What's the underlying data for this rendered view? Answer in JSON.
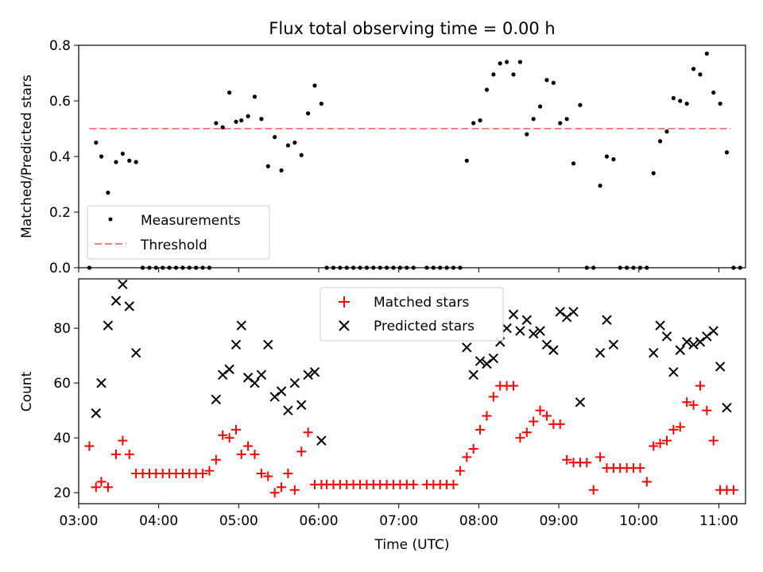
{
  "title": "Flux total observing time = 0.00 h",
  "chart_data": [
    {
      "type": "scatter",
      "ylabel": "Matched/Predicted stars",
      "xlim": [
        "03:00",
        "11:20"
      ],
      "ylim": [
        0,
        0.8
      ],
      "yticks": [
        "0.0",
        "0.2",
        "0.4",
        "0.6",
        "0.8"
      ],
      "legend": {
        "placement": "lower-left",
        "entries": [
          "Measurements",
          "Threshold"
        ]
      },
      "threshold": {
        "name": "Threshold",
        "y": 0.5,
        "x_range": [
          "03:08",
          "11:09"
        ],
        "color": "#ff8080",
        "style": "dashed"
      },
      "series": [
        {
          "name": "Measurements",
          "marker": "dot",
          "color": "#000000",
          "points": [
            [
              "03:08",
              0.0
            ],
            [
              "03:13",
              0.45
            ],
            [
              "03:17",
              0.4
            ],
            [
              "03:22",
              0.27
            ],
            [
              "03:28",
              0.38
            ],
            [
              "03:33",
              0.41
            ],
            [
              "03:38",
              0.385
            ],
            [
              "03:43",
              0.38
            ],
            [
              "03:48",
              0.0
            ],
            [
              "03:53",
              0.0
            ],
            [
              "03:58",
              0.0
            ],
            [
              "04:03",
              0.0
            ],
            [
              "04:08",
              0.0
            ],
            [
              "04:13",
              0.0
            ],
            [
              "04:18",
              0.0
            ],
            [
              "04:23",
              0.0
            ],
            [
              "04:28",
              0.0
            ],
            [
              "04:33",
              0.0
            ],
            [
              "04:38",
              0.0
            ],
            [
              "04:43",
              0.52
            ],
            [
              "04:48",
              0.505
            ],
            [
              "04:53",
              0.63
            ],
            [
              "04:58",
              0.525
            ],
            [
              "05:02",
              0.53
            ],
            [
              "05:07",
              0.545
            ],
            [
              "05:12",
              0.615
            ],
            [
              "05:17",
              0.535
            ],
            [
              "05:22",
              0.365
            ],
            [
              "05:27",
              0.47
            ],
            [
              "05:32",
              0.35
            ],
            [
              "05:37",
              0.44
            ],
            [
              "05:42",
              0.45
            ],
            [
              "05:47",
              0.405
            ],
            [
              "05:52",
              0.555
            ],
            [
              "05:57",
              0.655
            ],
            [
              "06:02",
              0.59
            ],
            [
              "06:06",
              0.0
            ],
            [
              "06:11",
              0.0
            ],
            [
              "06:16",
              0.0
            ],
            [
              "06:21",
              0.0
            ],
            [
              "06:26",
              0.0
            ],
            [
              "06:31",
              0.0
            ],
            [
              "06:36",
              0.0
            ],
            [
              "06:41",
              0.0
            ],
            [
              "06:46",
              0.0
            ],
            [
              "06:51",
              0.0
            ],
            [
              "06:56",
              0.0
            ],
            [
              "07:01",
              0.0
            ],
            [
              "07:06",
              0.0
            ],
            [
              "07:11",
              0.0
            ],
            [
              "07:21",
              0.0
            ],
            [
              "07:26",
              0.0
            ],
            [
              "07:31",
              0.0
            ],
            [
              "07:36",
              0.0
            ],
            [
              "07:41",
              0.0
            ],
            [
              "07:46",
              0.0
            ],
            [
              "07:51",
              0.385
            ],
            [
              "07:56",
              0.52
            ],
            [
              "08:01",
              0.53
            ],
            [
              "08:06",
              0.64
            ],
            [
              "08:11",
              0.695
            ],
            [
              "08:16",
              0.735
            ],
            [
              "08:21",
              0.74
            ],
            [
              "08:26",
              0.695
            ],
            [
              "08:31",
              0.74
            ],
            [
              "08:36",
              0.48
            ],
            [
              "08:41",
              0.535
            ],
            [
              "08:46",
              0.58
            ],
            [
              "08:51",
              0.675
            ],
            [
              "08:56",
              0.665
            ],
            [
              "09:01",
              0.52
            ],
            [
              "09:06",
              0.535
            ],
            [
              "09:11",
              0.375
            ],
            [
              "09:16",
              0.585
            ],
            [
              "09:21",
              0.0
            ],
            [
              "09:26",
              0.0
            ],
            [
              "09:31",
              0.295
            ],
            [
              "09:36",
              0.4
            ],
            [
              "09:41",
              0.39
            ],
            [
              "09:46",
              0.0
            ],
            [
              "09:51",
              0.0
            ],
            [
              "09:56",
              0.0
            ],
            [
              "10:01",
              0.0
            ],
            [
              "10:06",
              0.0
            ],
            [
              "10:11",
              0.34
            ],
            [
              "10:16",
              0.455
            ],
            [
              "10:21",
              0.49
            ],
            [
              "10:26",
              0.61
            ],
            [
              "10:31",
              0.6
            ],
            [
              "10:36",
              0.59
            ],
            [
              "10:41",
              0.715
            ],
            [
              "10:46",
              0.695
            ],
            [
              "10:51",
              0.77
            ],
            [
              "10:56",
              0.63
            ],
            [
              "11:01",
              0.59
            ],
            [
              "11:06",
              0.415
            ],
            [
              "11:11",
              0.0
            ],
            [
              "11:16",
              0.0
            ]
          ]
        }
      ]
    },
    {
      "type": "scatter",
      "xlabel": "Time (UTC)",
      "ylabel": "Count",
      "xlim": [
        "03:00",
        "11:20"
      ],
      "ylim": [
        16,
        98
      ],
      "yticks": [
        "20",
        "40",
        "60",
        "80"
      ],
      "xticks": [
        "03:00",
        "04:00",
        "05:00",
        "06:00",
        "07:00",
        "08:00",
        "09:00",
        "10:00",
        "11:00"
      ],
      "legend": {
        "placement": "upper-center",
        "entries": [
          "Matched stars",
          "Predicted stars"
        ]
      },
      "series": [
        {
          "name": "Matched stars",
          "marker": "plus",
          "color": "#ff0000",
          "points": [
            [
              "03:08",
              37
            ],
            [
              "03:13",
              22
            ],
            [
              "03:17",
              24
            ],
            [
              "03:22",
              22
            ],
            [
              "03:28",
              34
            ],
            [
              "03:33",
              39
            ],
            [
              "03:38",
              34
            ],
            [
              "03:43",
              27
            ],
            [
              "03:48",
              27
            ],
            [
              "03:53",
              27
            ],
            [
              "03:58",
              27
            ],
            [
              "04:03",
              27
            ],
            [
              "04:08",
              27
            ],
            [
              "04:13",
              27
            ],
            [
              "04:18",
              27
            ],
            [
              "04:23",
              27
            ],
            [
              "04:28",
              27
            ],
            [
              "04:33",
              27
            ],
            [
              "04:38",
              28
            ],
            [
              "04:43",
              32
            ],
            [
              "04:48",
              41
            ],
            [
              "04:53",
              40
            ],
            [
              "04:58",
              43
            ],
            [
              "05:02",
              34
            ],
            [
              "05:07",
              37
            ],
            [
              "05:12",
              34
            ],
            [
              "05:17",
              27
            ],
            [
              "05:22",
              26
            ],
            [
              "05:27",
              20
            ],
            [
              "05:32",
              22
            ],
            [
              "05:37",
              27
            ],
            [
              "05:42",
              21
            ],
            [
              "05:47",
              35
            ],
            [
              "05:52",
              42
            ],
            [
              "05:57",
              23
            ],
            [
              "06:02",
              23
            ],
            [
              "06:06",
              23
            ],
            [
              "06:11",
              23
            ],
            [
              "06:16",
              23
            ],
            [
              "06:21",
              23
            ],
            [
              "06:26",
              23
            ],
            [
              "06:31",
              23
            ],
            [
              "06:36",
              23
            ],
            [
              "06:41",
              23
            ],
            [
              "06:46",
              23
            ],
            [
              "06:51",
              23
            ],
            [
              "06:56",
              23
            ],
            [
              "07:01",
              23
            ],
            [
              "07:06",
              23
            ],
            [
              "07:11",
              23
            ],
            [
              "07:21",
              23
            ],
            [
              "07:26",
              23
            ],
            [
              "07:31",
              23
            ],
            [
              "07:36",
              23
            ],
            [
              "07:41",
              23
            ],
            [
              "07:46",
              28
            ],
            [
              "07:51",
              33
            ],
            [
              "07:56",
              36
            ],
            [
              "08:01",
              43
            ],
            [
              "08:06",
              48
            ],
            [
              "08:11",
              55
            ],
            [
              "08:16",
              59
            ],
            [
              "08:21",
              59
            ],
            [
              "08:26",
              59
            ],
            [
              "08:31",
              40
            ],
            [
              "08:36",
              42
            ],
            [
              "08:41",
              46
            ],
            [
              "08:46",
              50
            ],
            [
              "08:51",
              48
            ],
            [
              "08:56",
              45
            ],
            [
              "09:01",
              45
            ],
            [
              "09:06",
              32
            ],
            [
              "09:11",
              31
            ],
            [
              "09:16",
              31
            ],
            [
              "09:21",
              31
            ],
            [
              "09:26",
              21
            ],
            [
              "09:31",
              33
            ],
            [
              "09:36",
              29
            ],
            [
              "09:41",
              29
            ],
            [
              "09:46",
              29
            ],
            [
              "09:51",
              29
            ],
            [
              "09:56",
              29
            ],
            [
              "10:01",
              29
            ],
            [
              "10:06",
              24
            ],
            [
              "10:11",
              37
            ],
            [
              "10:16",
              38
            ],
            [
              "10:21",
              39
            ],
            [
              "10:26",
              43
            ],
            [
              "10:31",
              44
            ],
            [
              "10:36",
              53
            ],
            [
              "10:41",
              52
            ],
            [
              "10:46",
              59
            ],
            [
              "10:51",
              50
            ],
            [
              "10:56",
              39
            ],
            [
              "11:01",
              21
            ],
            [
              "11:06",
              21
            ],
            [
              "11:11",
              21
            ]
          ]
        },
        {
          "name": "Predicted stars",
          "marker": "x",
          "color": "#000000",
          "points": [
            [
              "03:13",
              49
            ],
            [
              "03:17",
              60
            ],
            [
              "03:22",
              81
            ],
            [
              "03:28",
              90
            ],
            [
              "03:33",
              96
            ],
            [
              "03:38",
              88
            ],
            [
              "03:43",
              71
            ],
            [
              "04:43",
              54
            ],
            [
              "04:48",
              63
            ],
            [
              "04:53",
              65
            ],
            [
              "04:58",
              74
            ],
            [
              "05:02",
              81
            ],
            [
              "05:07",
              62
            ],
            [
              "05:12",
              60
            ],
            [
              "05:17",
              63
            ],
            [
              "05:22",
              74
            ],
            [
              "05:27",
              55
            ],
            [
              "05:32",
              57
            ],
            [
              "05:37",
              50
            ],
            [
              "05:42",
              60
            ],
            [
              "05:47",
              52
            ],
            [
              "05:52",
              63
            ],
            [
              "05:57",
              64
            ],
            [
              "06:02",
              39
            ],
            [
              "07:51",
              73
            ],
            [
              "07:56",
              63
            ],
            [
              "08:01",
              68
            ],
            [
              "08:06",
              67
            ],
            [
              "08:11",
              69
            ],
            [
              "08:16",
              75
            ],
            [
              "08:21",
              80
            ],
            [
              "08:26",
              85
            ],
            [
              "08:31",
              79
            ],
            [
              "08:36",
              83
            ],
            [
              "08:41",
              78
            ],
            [
              "08:46",
              79
            ],
            [
              "08:51",
              74
            ],
            [
              "08:56",
              72
            ],
            [
              "09:01",
              86
            ],
            [
              "09:06",
              84
            ],
            [
              "09:11",
              86
            ],
            [
              "09:16",
              53
            ],
            [
              "09:31",
              71
            ],
            [
              "09:36",
              83
            ],
            [
              "09:41",
              74
            ],
            [
              "10:11",
              71
            ],
            [
              "10:16",
              81
            ],
            [
              "10:21",
              77
            ],
            [
              "10:26",
              64
            ],
            [
              "10:31",
              72
            ],
            [
              "10:36",
              75
            ],
            [
              "10:41",
              74
            ],
            [
              "10:46",
              75
            ],
            [
              "10:51",
              77
            ],
            [
              "10:56",
              79
            ],
            [
              "11:01",
              66
            ],
            [
              "11:06",
              51
            ]
          ]
        }
      ]
    }
  ]
}
